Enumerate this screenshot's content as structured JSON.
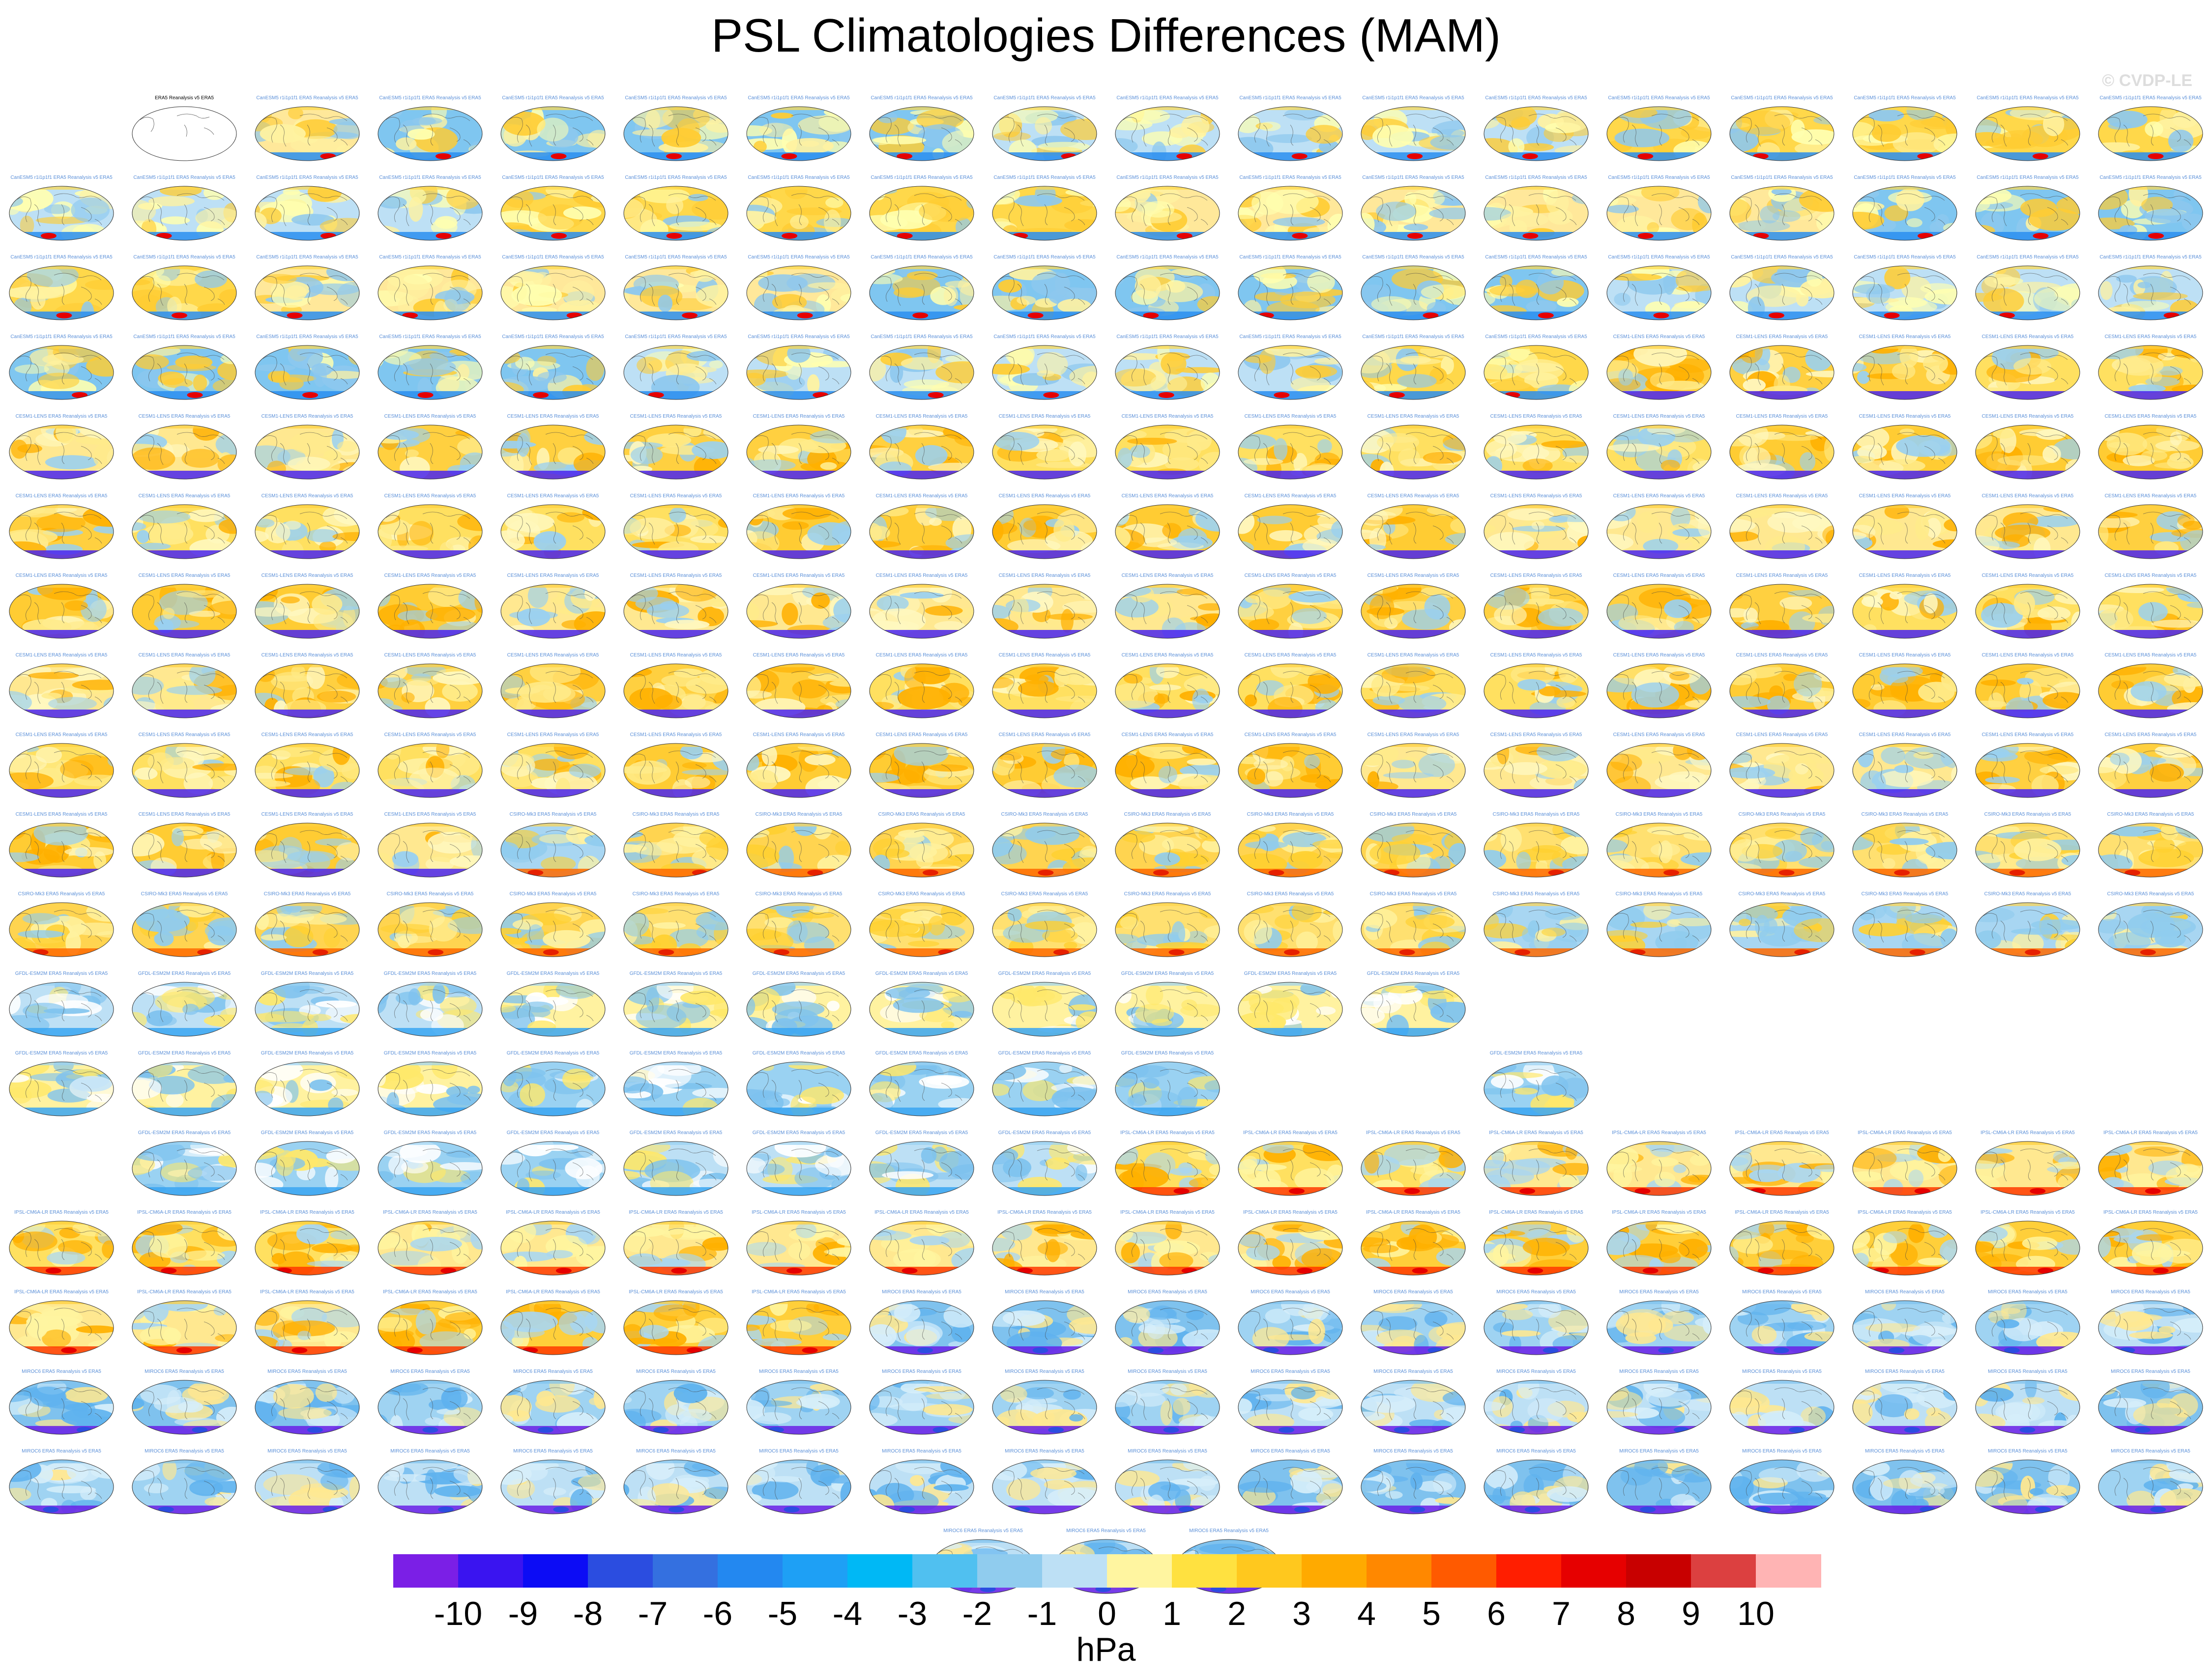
{
  "figure": {
    "title": "PSL Climatologies Differences (MAM)",
    "watermark": "© CVDP-LE"
  },
  "chart_data": {
    "type": "heatmap",
    "title": "PSL Climatologies Differences (MAM)",
    "colorbar": {
      "units": "hPa",
      "ticks": [
        "-10",
        "-9",
        "-8",
        "-7",
        "-6",
        "-5",
        "-4",
        "-3",
        "-2",
        "-1",
        "0",
        "1",
        "2",
        "3",
        "4",
        "5",
        "6",
        "7",
        "8",
        "9",
        "10"
      ],
      "colors": [
        "#7b1fe6",
        "#3a14f0",
        "#0c0cf5",
        "#2b4de0",
        "#3470e0",
        "#2388f0",
        "#1ea0f5",
        "#00b8f5",
        "#50c0f0",
        "#90ccee",
        "#bde0f5",
        "#fff5a0",
        "#ffe140",
        "#ffc81e",
        "#ffaa00",
        "#ff8800",
        "#ff5a00",
        "#ff1e00",
        "#e60000",
        "#c80000",
        "#dc4040",
        "#ffb4b4"
      ]
    },
    "panel_rows": [
      {
        "count": 16,
        "offset": 1,
        "pattern": "cesm2"
      },
      {
        "count": 18,
        "offset": 0,
        "pattern": "cesm2"
      },
      {
        "count": 18,
        "offset": 0,
        "pattern": "cesm2"
      },
      {
        "count": 18,
        "offset": 0,
        "pattern": "mixed_a"
      },
      {
        "count": 18,
        "offset": 0,
        "pattern": "cesm1"
      },
      {
        "count": 18,
        "offset": 0,
        "pattern": "cesm1"
      },
      {
        "count": 18,
        "offset": 0,
        "pattern": "cesm1"
      },
      {
        "count": 18,
        "offset": 0,
        "pattern": "cesm1"
      },
      {
        "count": 18,
        "offset": 0,
        "pattern": "cesm1"
      },
      {
        "count": 18,
        "offset": 0,
        "pattern": "mixed_b"
      },
      {
        "count": 18,
        "offset": 0,
        "pattern": "canesm"
      },
      {
        "count": 12,
        "offset": 0,
        "pattern": "gfdl"
      },
      {
        "count": 11,
        "offset": 0,
        "pattern": "gfdl",
        "gap_after": 10,
        "gap": 2
      },
      {
        "count": 17,
        "offset": 1,
        "pattern": "mixed_c"
      },
      {
        "count": 18,
        "offset": 0,
        "pattern": "ipsl"
      },
      {
        "count": 18,
        "offset": 0,
        "pattern": "mixed_d"
      },
      {
        "count": 18,
        "offset": 0,
        "pattern": "miroc"
      },
      {
        "count": 18,
        "offset": 0,
        "pattern": "miroc"
      },
      {
        "count": 3,
        "offset": 7.5,
        "pattern": "miroc"
      }
    ]
  },
  "panel_labels": {
    "reference": "ERA5 Reanalysis v5 ERA5",
    "cesm2": "CanESM5 r1i1p1f1 ERA5 Reanalysis v5 ERA5",
    "cesm1": "CESM1-LENS ERA5 Reanalysis v5 ERA5",
    "canesm": "CSIRO-Mk3 ERA5 Reanalysis v5 ERA5",
    "gfdl": "GFDL-ESM2M ERA5 Reanalysis v5 ERA5",
    "ipsl": "IPSL-CM6A-LR ERA5 Reanalysis v5 ERA5",
    "miroc": "MIROC6 ERA5 Reanalysis v5 ERA5"
  }
}
